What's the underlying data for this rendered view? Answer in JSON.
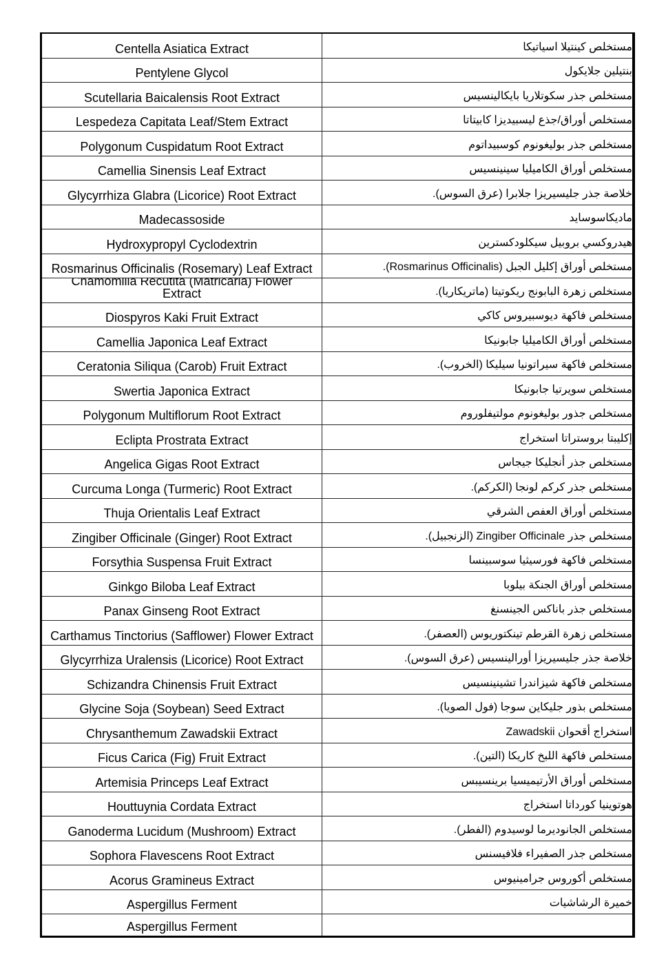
{
  "rows": [
    {
      "en": "Centella Asiatica Extract",
      "ar": "مستخلص كينتيلا اسياتيكا"
    },
    {
      "en": "Pentylene Glycol",
      "ar": "بنتيلين جلايكول"
    },
    {
      "en": "Scutellaria Baicalensis Root Extract",
      "ar": "مستخلص جذر سكوتلاريا بايكالينسيس"
    },
    {
      "en": "Lespedeza Capitata Leaf/Stem Extract",
      "ar": "مستخلص أوراق/جذع ليسبيديزا كابيتاتا"
    },
    {
      "en": "Polygonum Cuspidatum Root Extract",
      "ar": "مستخلص جذر بوليغونوم كوسبيداتوم"
    },
    {
      "en": "Camellia Sinensis Leaf Extract",
      "ar": "مستخلص أوراق الكاميليا سينينسيس"
    },
    {
      "en": "Glycyrrhiza Glabra (Licorice) Root Extract",
      "ar": "خلاصة جذر جليسيريزا جلابرا (عرق السوس)."
    },
    {
      "en": "Madecassoside",
      "ar": "ماديكاسوسايد"
    },
    {
      "en": "Hydroxypropyl Cyclodextrin",
      "ar": "هيدروكسي بروبيل سيكلودكسترين"
    },
    {
      "en": "Rosmarinus Officinalis (Rosemary) Leaf Extract",
      "ar": "مستخلص أوراق إكليل الجبل (Rosmarinus Officinalis)."
    },
    {
      "en": "Chamomilla Recutita (Matricaria) Flower Extract",
      "ar": "مستخلص زهرة البابونج ريكوتيتا (ماتريكاريا)."
    },
    {
      "en": "Diospyros Kaki Fruit Extract",
      "ar": "مستخلص فاكهة ديوسبيروس كاكي"
    },
    {
      "en": "Camellia Japonica Leaf Extract",
      "ar": "مستخلص أوراق الكاميليا جابونيكا"
    },
    {
      "en": "Ceratonia Siliqua (Carob) Fruit Extract",
      "ar": "مستخلص فاكهة سيراتونيا سيليكا (الخروب)."
    },
    {
      "en": "Swertia Japonica Extract",
      "ar": "مستخلص سويرتيا جابونيكا"
    },
    {
      "en": "Polygonum Multiflorum Root Extract",
      "ar": "مستخلص جذور بوليغونوم مولتيفلوروم"
    },
    {
      "en": "Eclipta Prostrata Extract",
      "ar": "إكليبتا بروستراتا استخراج"
    },
    {
      "en": "Angelica Gigas Root Extract",
      "ar": "مستخلص جذر أنجليكا جيجاس"
    },
    {
      "en": "Curcuma Longa (Turmeric) Root Extract",
      "ar": "مستخلص جذر كركم لونجا (الكركم)."
    },
    {
      "en": "Thuja Orientalis Leaf Extract",
      "ar": "مستخلص أوراق العفص الشرقي"
    },
    {
      "en": "Zingiber Officinale (Ginger) Root Extract",
      "ar": "مستخلص جذر Zingiber Officinale (الزنجبيل)."
    },
    {
      "en": "Forsythia Suspensa Fruit Extract",
      "ar": "مستخلص فاكهة فورسيثيا سوسبينسا"
    },
    {
      "en": "Ginkgo Biloba Leaf Extract",
      "ar": "مستخلص أوراق الجنكة بيلوبا"
    },
    {
      "en": "Panax Ginseng Root Extract",
      "ar": "مستخلص جذر باناكس الجينسنغ"
    },
    {
      "en": "Carthamus Tinctorius (Safflower) Flower Extract",
      "ar": "مستخلص زهرة القرطم تينكتوريوس (العصفر)."
    },
    {
      "en": "Glycyrrhiza Uralensis (Licorice) Root Extract",
      "ar": "خلاصة جذر جليسيريزا أورالينسيس (عرق السوس)."
    },
    {
      "en": "Schizandra Chinensis Fruit Extract",
      "ar": "مستخلص فاكهة شيزاندرا تشينينسيس"
    },
    {
      "en": "Glycine Soja (Soybean) Seed Extract",
      "ar": "مستخلص بذور جليكاين سوجا (فول الصويا)."
    },
    {
      "en": "Chrysanthemum Zawadskii Extract",
      "ar": "استخراج أقحوان Zawadskii"
    },
    {
      "en": "Ficus Carica (Fig) Fruit Extract",
      "ar": "مستخلص فاكهة اللبخ كاريكا (التين)."
    },
    {
      "en": "Artemisia Princeps Leaf Extract",
      "ar": "مستخلص أوراق الأرتيميسيا برينسيبس"
    },
    {
      "en": "Houttuynia Cordata Extract",
      "ar": "هوتوينيا كورداتا استخراج"
    },
    {
      "en": "Ganoderma Lucidum (Mushroom) Extract",
      "ar": "مستخلص الجانوديرما لوسيدوم (الفطر)."
    },
    {
      "en": "Sophora Flavescens Root Extract",
      "ar": "مستخلص جذر الصفيراء فلافيسنس"
    },
    {
      "en": "Acorus Gramineus Extract",
      "ar": "مستخلص أكوروس جرامينيوس"
    },
    {
      "en": "Aspergillus Ferment",
      "ar": "خميرة الرشاشيات"
    },
    {
      "en": "Aspergillus Ferment",
      "ar": ""
    }
  ]
}
